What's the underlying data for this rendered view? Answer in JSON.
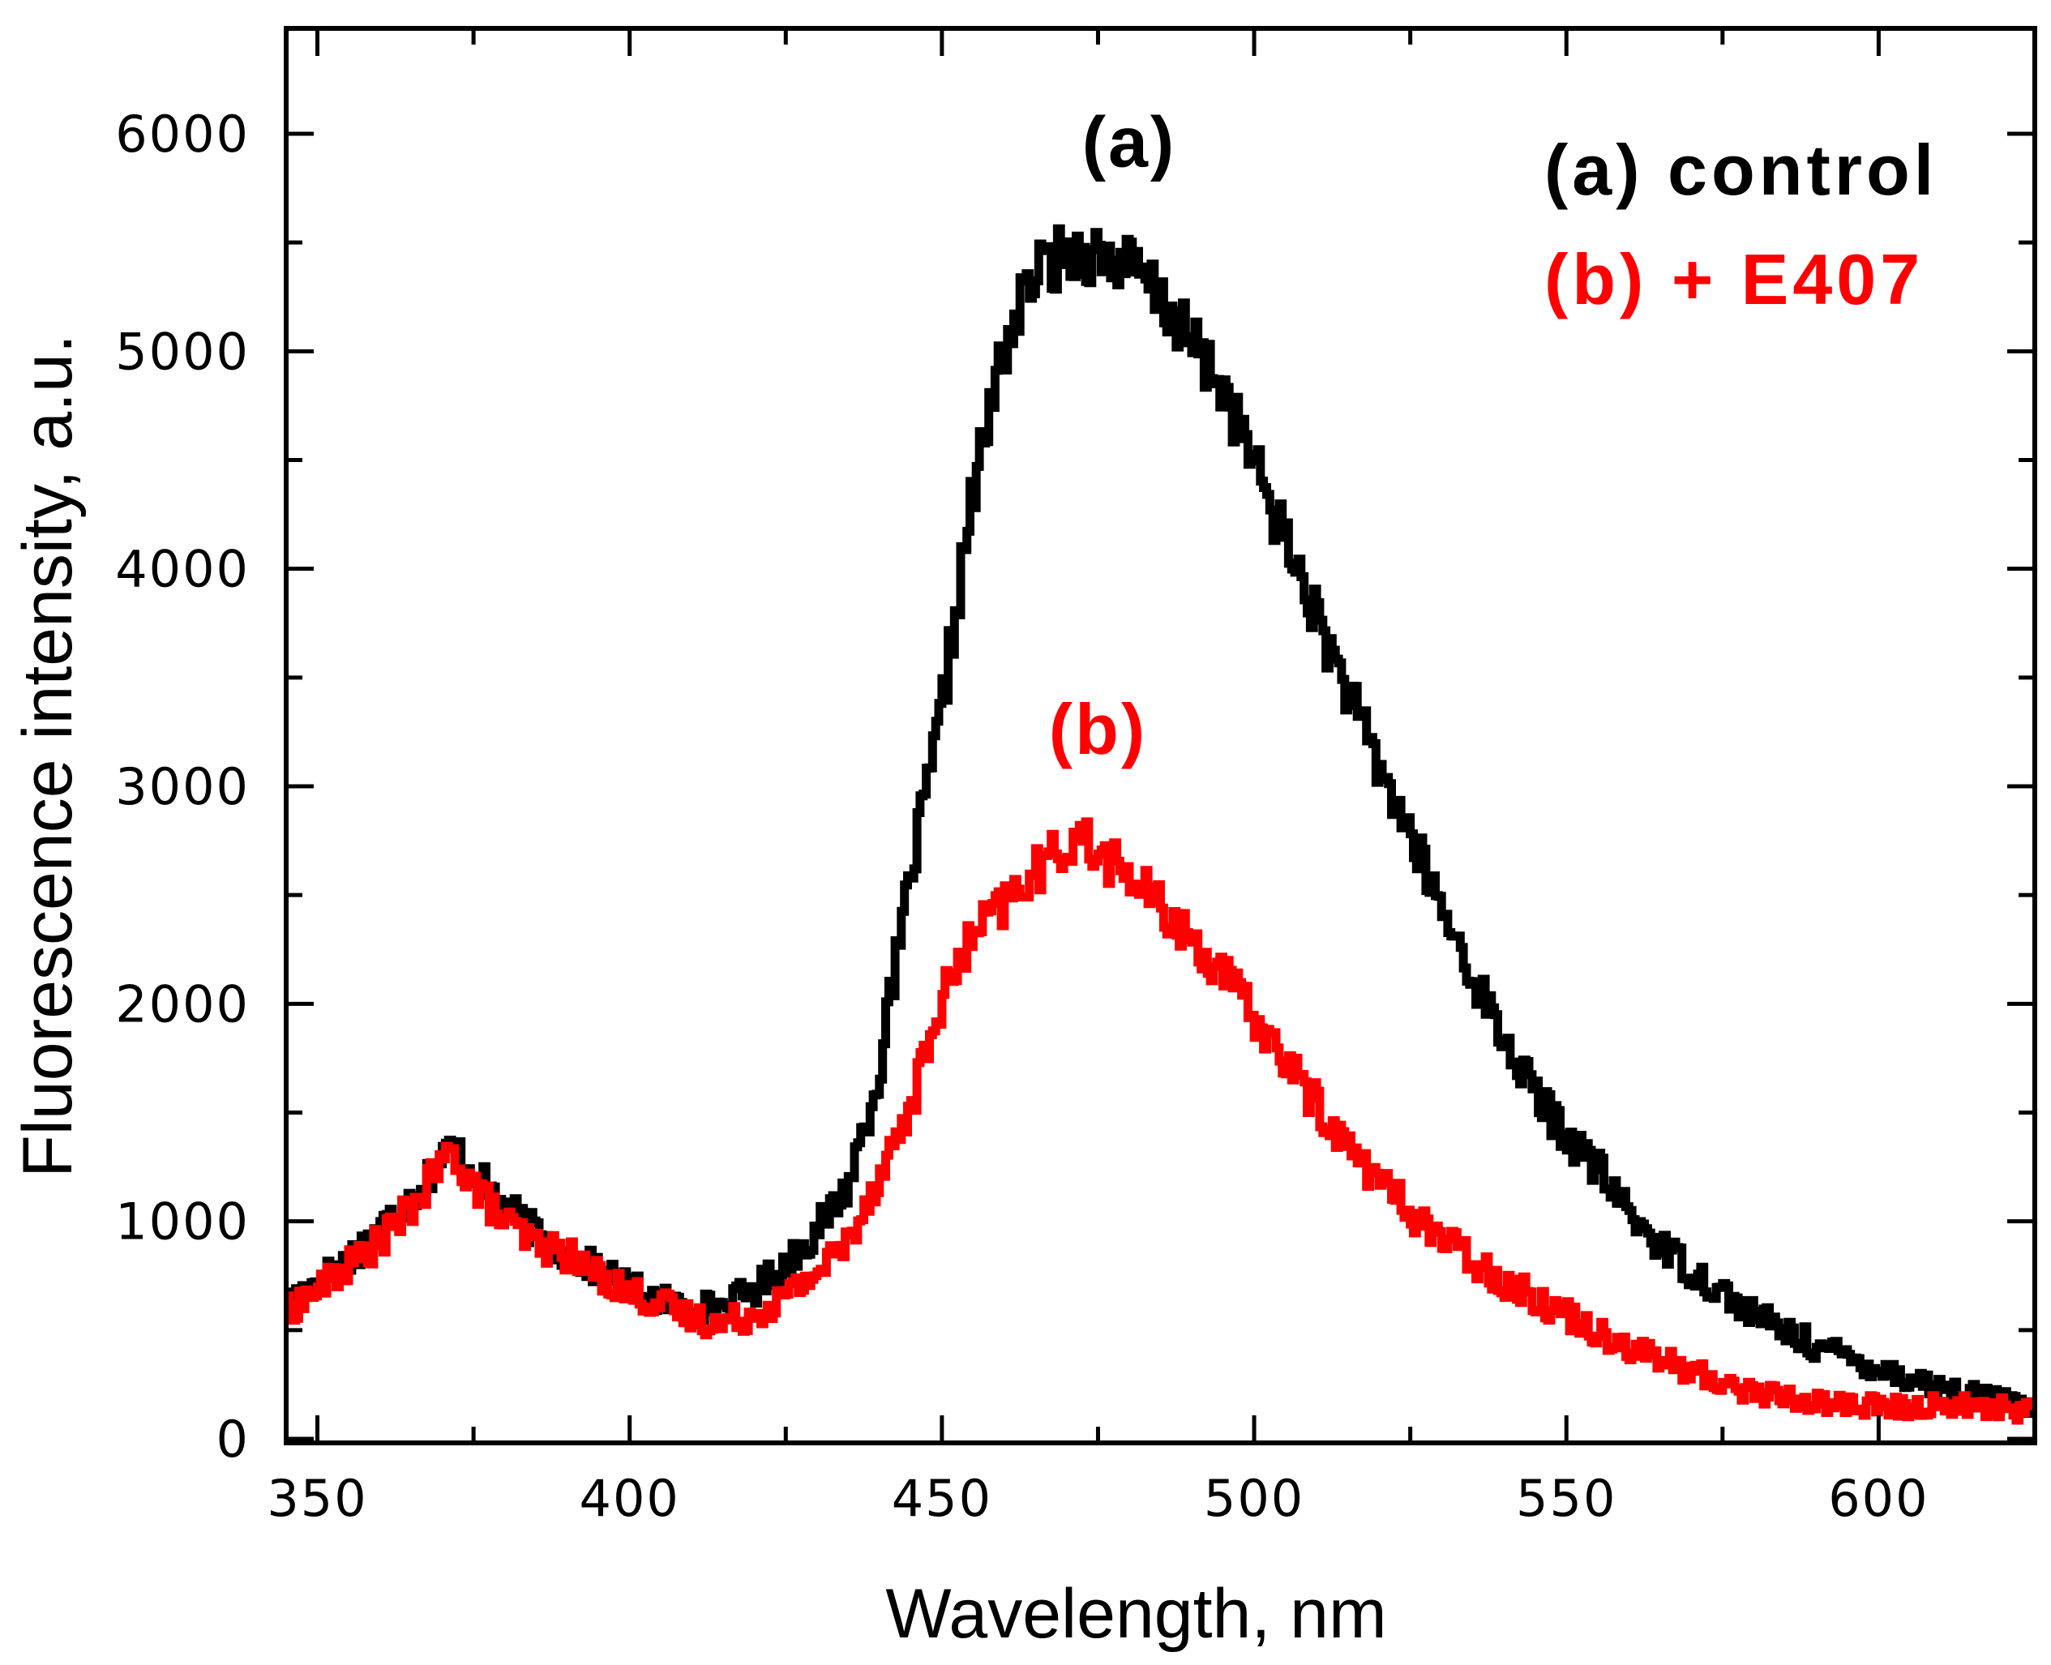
{
  "chart_data": {
    "type": "line",
    "title": "",
    "xlabel": "Wavelength, nm",
    "ylabel": "Fluorescence intensity, a.u.",
    "xlim": [
      345,
      625
    ],
    "ylim": [
      0,
      6500
    ],
    "x_ticks": [
      350,
      400,
      450,
      500,
      550,
      600
    ],
    "x_tick_labels": [
      "350",
      "400",
      "450",
      "500",
      "550",
      "600"
    ],
    "y_ticks": [
      0,
      1000,
      2000,
      3000,
      4000,
      5000,
      6000
    ],
    "y_tick_labels": [
      "0",
      "1000",
      "2000",
      "3000",
      "4000",
      "5000",
      "6000"
    ],
    "grid": false,
    "legend_position": "top-right",
    "series": [
      {
        "name": "(a) control",
        "color": "#000000",
        "x": [
          345,
          350,
          355,
          360,
          365,
          370,
          372,
          375,
          380,
          385,
          390,
          395,
          400,
          405,
          410,
          415,
          420,
          425,
          430,
          435,
          440,
          445,
          450,
          455,
          460,
          465,
          470,
          475,
          480,
          485,
          490,
          495,
          500,
          505,
          510,
          515,
          520,
          525,
          530,
          535,
          540,
          545,
          550,
          555,
          560,
          565,
          570,
          575,
          580,
          585,
          590,
          595,
          600,
          605,
          610,
          615,
          620,
          625
        ],
        "y": [
          620,
          720,
          820,
          960,
          1100,
          1280,
          1350,
          1230,
          1080,
          950,
          850,
          780,
          700,
          640,
          600,
          610,
          680,
          800,
          950,
          1150,
          1650,
          2550,
          3300,
          4300,
          5000,
          5350,
          5450,
          5450,
          5400,
          5250,
          5050,
          4850,
          4500,
          4150,
          3800,
          3450,
          3100,
          2800,
          2450,
          2150,
          1850,
          1600,
          1400,
          1250,
          1050,
          900,
          780,
          680,
          580,
          500,
          430,
          380,
          330,
          280,
          240,
          200,
          170,
          130
        ]
      },
      {
        "name": "(b) + E407",
        "color": "#ff0000",
        "x": [
          345,
          350,
          355,
          360,
          365,
          370,
          372,
          375,
          380,
          385,
          390,
          395,
          400,
          405,
          410,
          415,
          420,
          425,
          430,
          435,
          440,
          445,
          450,
          455,
          460,
          465,
          470,
          472,
          475,
          480,
          485,
          490,
          495,
          500,
          505,
          510,
          515,
          520,
          525,
          530,
          535,
          540,
          545,
          550,
          555,
          560,
          565,
          570,
          575,
          580,
          585,
          590,
          595,
          600,
          605,
          610,
          615,
          620,
          625
        ],
        "y": [
          580,
          680,
          790,
          900,
          1050,
          1250,
          1320,
          1180,
          1000,
          900,
          850,
          760,
          680,
          620,
          560,
          530,
          570,
          650,
          760,
          900,
          1200,
          1500,
          2000,
          2300,
          2450,
          2600,
          2720,
          2780,
          2700,
          2600,
          2450,
          2300,
          2150,
          1950,
          1750,
          1550,
          1350,
          1200,
          1050,
          930,
          830,
          730,
          650,
          580,
          500,
          430,
          370,
          310,
          260,
          220,
          190,
          170,
          160,
          150,
          140,
          160,
          150,
          140,
          130
        ]
      }
    ],
    "annotations": [
      {
        "text": "(a)",
        "x": 480,
        "y": 5850,
        "color": "#000000"
      },
      {
        "text": "(b)",
        "x": 475,
        "y": 3150,
        "color": "#ff0000"
      }
    ],
    "legend": [
      {
        "label": "(a) control",
        "color": "#000000"
      },
      {
        "label": "(b) + E407",
        "color": "#ff0000"
      }
    ]
  }
}
